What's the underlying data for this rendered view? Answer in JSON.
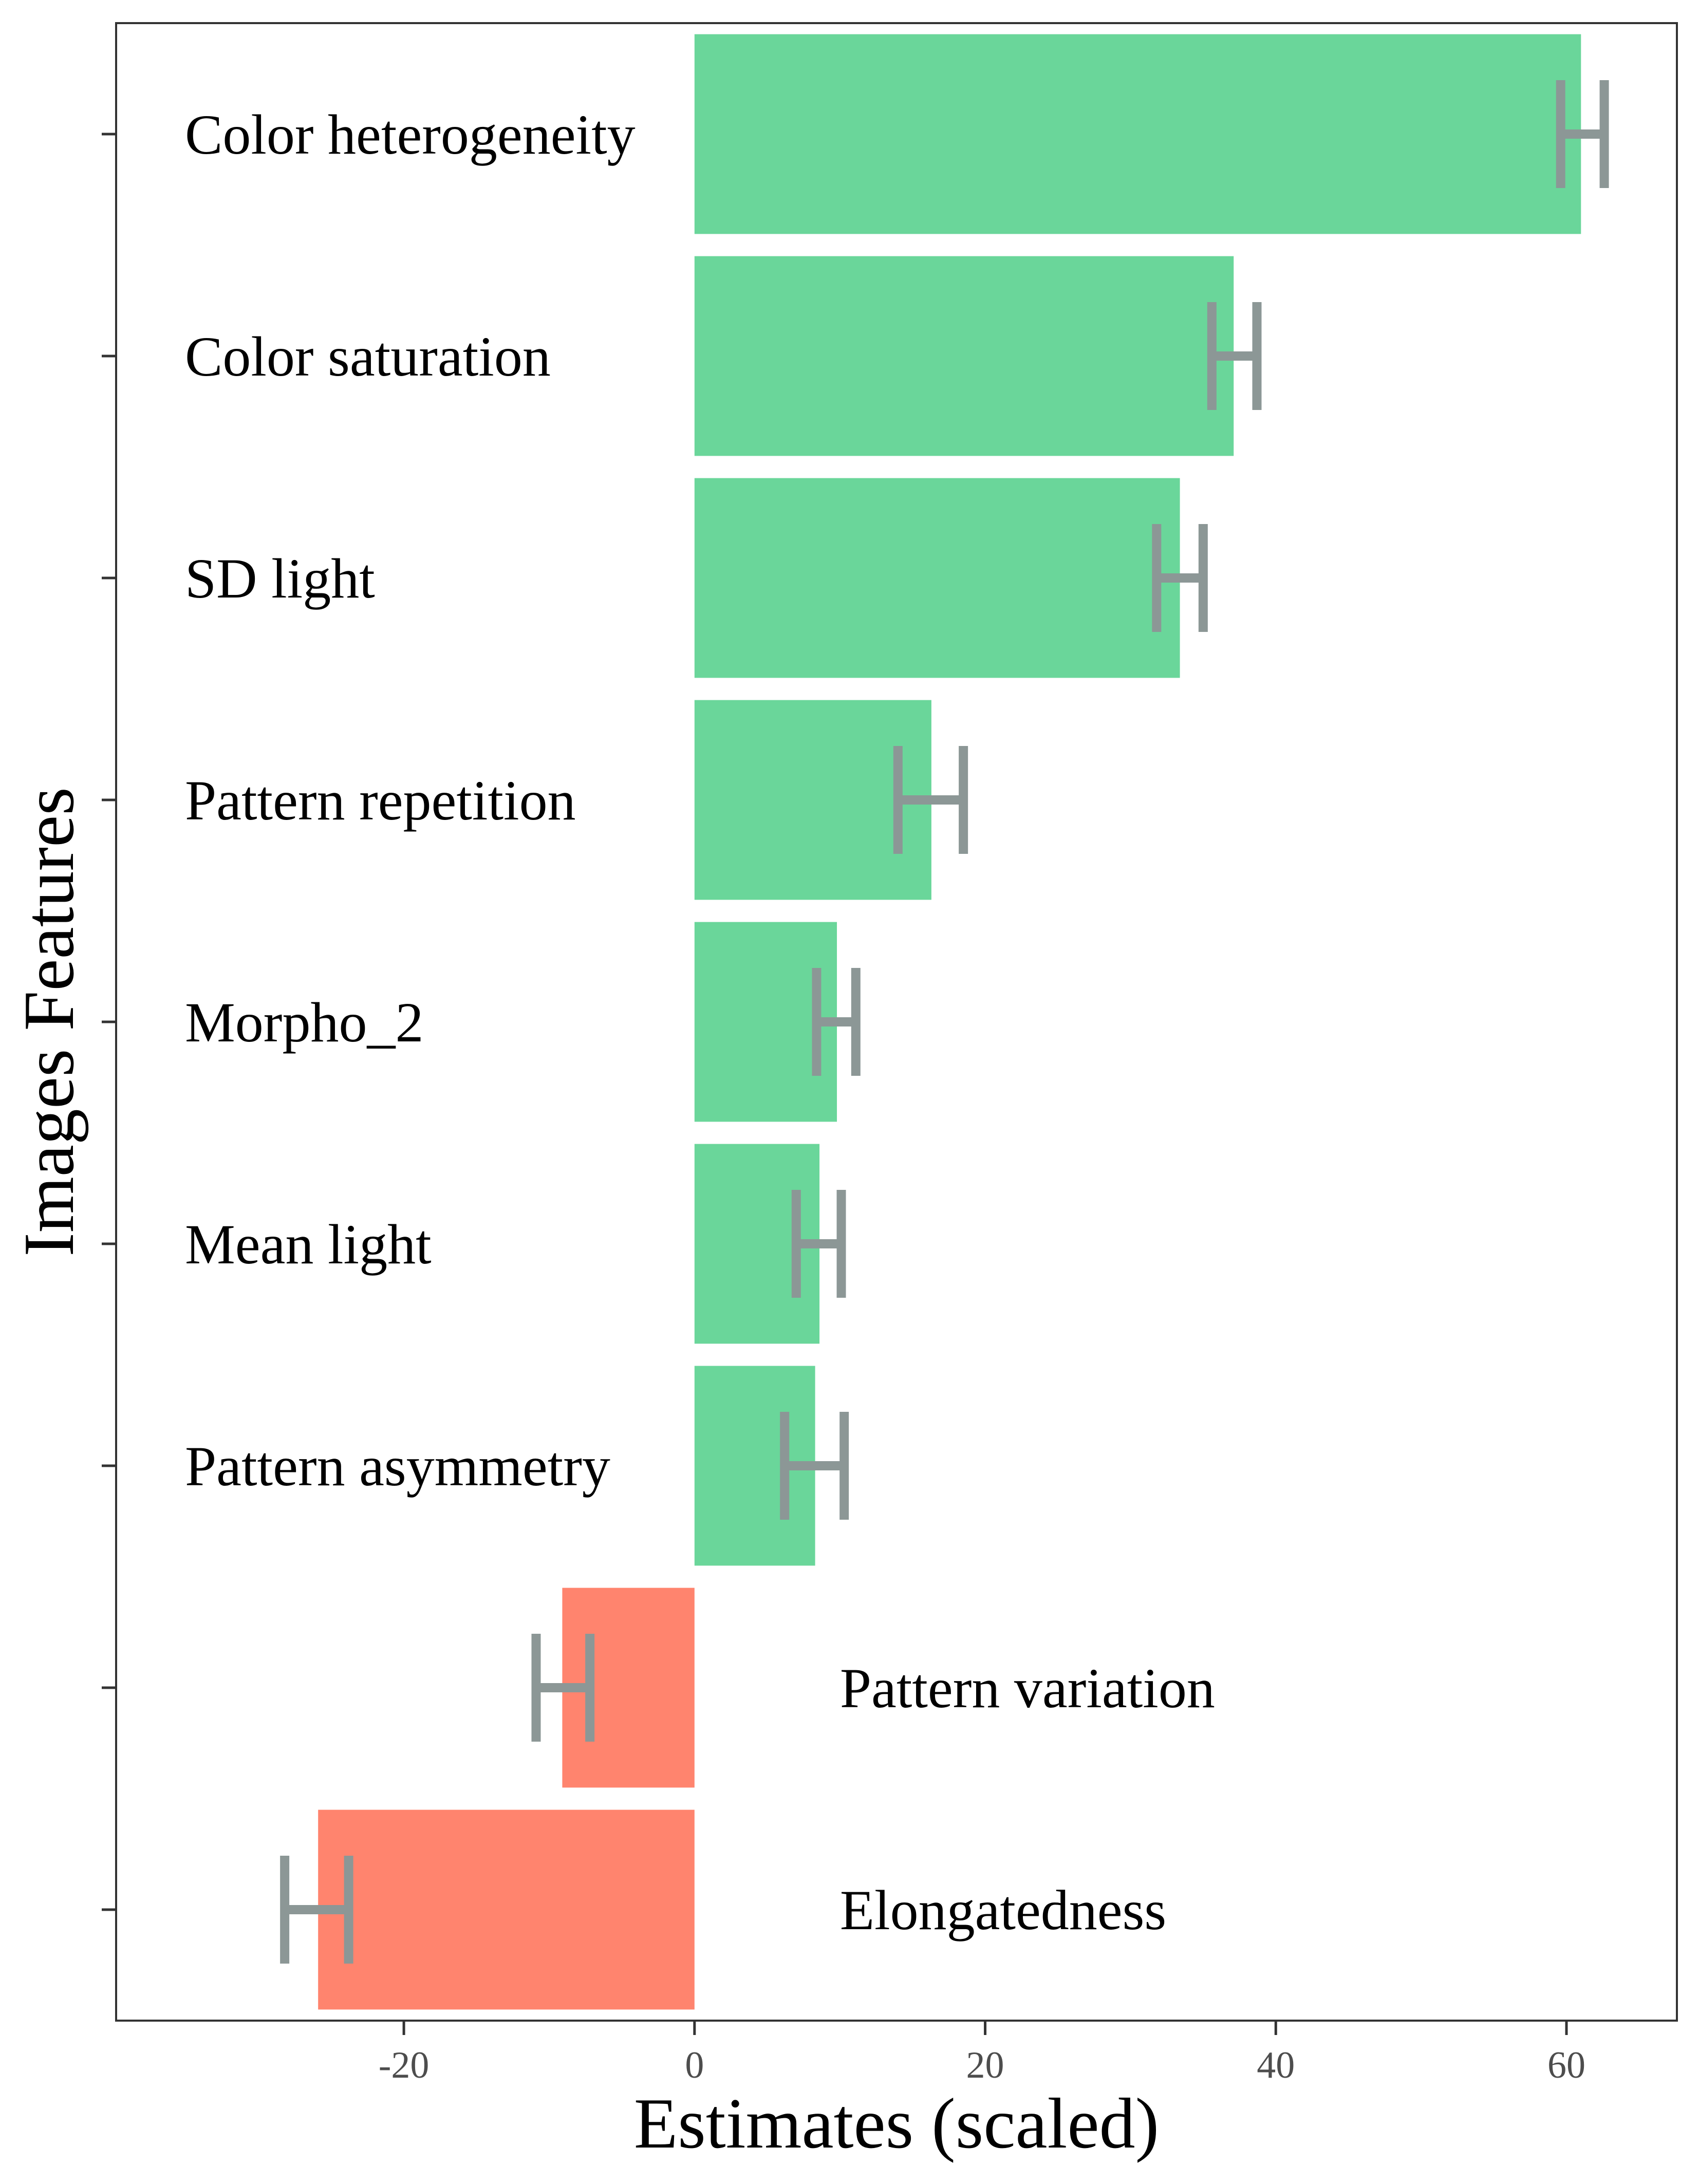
{
  "chart_data": {
    "type": "bar",
    "orientation": "horizontal",
    "xlabel": "Estimates (scaled)",
    "ylabel": "Images Features",
    "xlim": [
      -39.8,
      67.6
    ],
    "xticks": [
      -20,
      0,
      20,
      40,
      60
    ],
    "xtick_labels": [
      "-20",
      "0",
      "20",
      "40",
      "60"
    ],
    "grid": false,
    "legend": "none",
    "colors": {
      "positive": "#6AD69A",
      "negative": "#FF846E",
      "error_bar": "#8C9796",
      "axis": "#333333",
      "tick_text": "#4d4d4d"
    },
    "categories": [
      "Color heterogeneity",
      "Color saturation",
      "SD light",
      "Pattern repetition",
      "Morpho_2",
      "Mean light",
      "Pattern asymmetry",
      "Pattern variation",
      "Elongatedness"
    ],
    "values": [
      61.0,
      37.1,
      33.4,
      16.3,
      9.8,
      8.6,
      8.3,
      -9.1,
      -25.9
    ],
    "error_low": [
      59.6,
      35.6,
      31.8,
      14.0,
      8.4,
      7.0,
      6.2,
      -10.9,
      -28.2
    ],
    "error_high": [
      62.6,
      38.7,
      35.0,
      18.5,
      11.1,
      10.1,
      10.3,
      -7.2,
      -23.8
    ]
  }
}
